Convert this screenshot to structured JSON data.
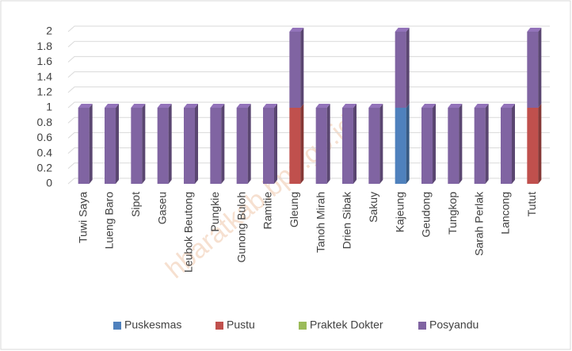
{
  "chart_data": {
    "type": "bar3d_stacked",
    "categories": [
      "Tuwi Saya",
      "Lueng Baro",
      "Sipot",
      "Gaseu",
      "Leubok Beutong",
      "Pungkie",
      "Gunong Buloh",
      "Ramitie",
      "Gleung",
      "Tanoh Mirah",
      "Drien Sibak",
      "Sakuy",
      "Kajeung",
      "Geudong",
      "Tungkop",
      "Sarah Perlak",
      "Lancong",
      "Tutut"
    ],
    "series": [
      {
        "name": "Puskesmas",
        "color": "#4f81bd",
        "values": [
          0,
          0,
          0,
          0,
          0,
          0,
          0,
          0,
          0,
          0,
          0,
          0,
          1,
          0,
          0,
          0,
          0,
          0
        ]
      },
      {
        "name": "Pustu",
        "color": "#c0504d",
        "values": [
          0,
          0,
          0,
          0,
          0,
          0,
          0,
          0,
          1,
          0,
          0,
          0,
          0,
          0,
          0,
          0,
          0,
          1
        ]
      },
      {
        "name": "Praktek Dokter",
        "color": "#9bbb59",
        "values": [
          0,
          0,
          0,
          0,
          0,
          0,
          0,
          0,
          0,
          0,
          0,
          0,
          0,
          0,
          0,
          0,
          0,
          0
        ]
      },
      {
        "name": "Posyandu",
        "color": "#8064a2",
        "values": [
          1,
          1,
          1,
          1,
          1,
          1,
          1,
          1,
          1,
          1,
          1,
          1,
          1,
          1,
          1,
          1,
          1,
          1
        ]
      }
    ],
    "ylim": [
      0,
      2
    ],
    "yticks": [
      0,
      0.2,
      0.4,
      0.6,
      0.8,
      1,
      1.2,
      1.4,
      1.6,
      1.8,
      2
    ],
    "grid": true,
    "legend": "bottom",
    "watermark": "hbaratkab.bps.go.id"
  }
}
